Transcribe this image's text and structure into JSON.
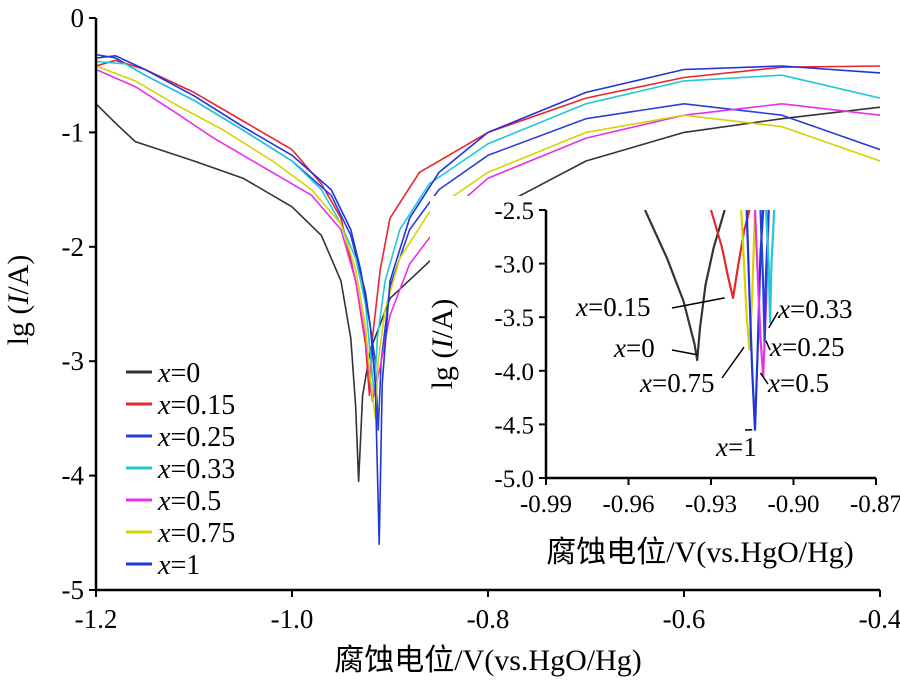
{
  "chart_data": [
    {
      "type": "line",
      "xlabel": "腐蚀电位/V(vs.HgO/Hg)",
      "ylabel": "lg (I/A)",
      "xlim": [
        -1.2,
        -0.4
      ],
      "ylim": [
        -5,
        0
      ],
      "x_ticks": [
        -1.2,
        -1.0,
        -0.8,
        -0.6,
        -0.4
      ],
      "x_tick_labels": [
        "-1.2",
        "-1.0",
        "-0.8",
        "-0.6",
        "-0.4"
      ],
      "y_ticks": [
        0,
        -1,
        -2,
        -3,
        -4,
        -5
      ],
      "y_tick_labels": [
        "0",
        "-1",
        "-2",
        "-3",
        "-4",
        "-5"
      ],
      "legend_position": "bottom-left",
      "series": [
        {
          "name": "x=0",
          "color": "#333333",
          "points": [
            [
              -1.2,
              -0.75
            ],
            [
              -1.18,
              -0.92
            ],
            [
              -1.16,
              -1.08
            ],
            [
              -1.1,
              -1.25
            ],
            [
              -1.05,
              -1.4
            ],
            [
              -1.0,
              -1.65
            ],
            [
              -0.97,
              -1.9
            ],
            [
              -0.95,
              -2.3
            ],
            [
              -0.94,
              -2.8
            ],
            [
              -0.935,
              -3.4
            ],
            [
              -0.932,
              -4.05
            ],
            [
              -0.928,
              -3.3
            ],
            [
              -0.92,
              -2.9
            ],
            [
              -0.9,
              -2.45
            ],
            [
              -0.85,
              -2.05
            ],
            [
              -0.8,
              -1.7
            ],
            [
              -0.7,
              -1.25
            ],
            [
              -0.6,
              -1.0
            ],
            [
              -0.5,
              -0.88
            ],
            [
              -0.4,
              -0.78
            ]
          ]
        },
        {
          "name": "x=0.15",
          "color": "#e8262b",
          "points": [
            [
              -1.2,
              -0.42
            ],
            [
              -1.18,
              -0.37
            ],
            [
              -1.15,
              -0.45
            ],
            [
              -1.1,
              -0.65
            ],
            [
              -1.05,
              -0.9
            ],
            [
              -1.0,
              -1.15
            ],
            [
              -0.97,
              -1.45
            ],
            [
              -0.95,
              -1.75
            ],
            [
              -0.935,
              -2.3
            ],
            [
              -0.925,
              -2.85
            ],
            [
              -0.921,
              -3.3
            ],
            [
              -0.918,
              -2.8
            ],
            [
              -0.91,
              -2.2
            ],
            [
              -0.9,
              -1.75
            ],
            [
              -0.87,
              -1.35
            ],
            [
              -0.8,
              -1.0
            ],
            [
              -0.7,
              -0.7
            ],
            [
              -0.6,
              -0.52
            ],
            [
              -0.5,
              -0.43
            ],
            [
              -0.4,
              -0.42
            ]
          ]
        },
        {
          "name": "x=0.25",
          "color": "#2b3fd6",
          "points": [
            [
              -1.2,
              -0.32
            ],
            [
              -1.18,
              -0.35
            ],
            [
              -1.15,
              -0.5
            ],
            [
              -1.1,
              -0.72
            ],
            [
              -1.05,
              -0.98
            ],
            [
              -1.0,
              -1.25
            ],
            [
              -0.96,
              -1.55
            ],
            [
              -0.94,
              -1.9
            ],
            [
              -0.925,
              -2.4
            ],
            [
              -0.915,
              -3.0
            ],
            [
              -0.912,
              -3.6
            ],
            [
              -0.909,
              -3.0
            ],
            [
              -0.9,
              -2.35
            ],
            [
              -0.88,
              -1.85
            ],
            [
              -0.85,
              -1.5
            ],
            [
              -0.8,
              -1.2
            ],
            [
              -0.7,
              -0.88
            ],
            [
              -0.6,
              -0.75
            ],
            [
              -0.5,
              -0.85
            ],
            [
              -0.4,
              -1.15
            ]
          ]
        },
        {
          "name": "x=0.33",
          "color": "#22c8d8",
          "points": [
            [
              -1.2,
              -0.38
            ],
            [
              -1.17,
              -0.4
            ],
            [
              -1.15,
              -0.5
            ],
            [
              -1.1,
              -0.72
            ],
            [
              -1.05,
              -0.98
            ],
            [
              -1.0,
              -1.25
            ],
            [
              -0.97,
              -1.5
            ],
            [
              -0.95,
              -1.8
            ],
            [
              -0.935,
              -2.1
            ],
            [
              -0.925,
              -2.5
            ],
            [
              -0.916,
              -3.3
            ],
            [
              -0.913,
              -2.8
            ],
            [
              -0.905,
              -2.3
            ],
            [
              -0.89,
              -1.85
            ],
            [
              -0.86,
              -1.45
            ],
            [
              -0.8,
              -1.1
            ],
            [
              -0.7,
              -0.75
            ],
            [
              -0.6,
              -0.55
            ],
            [
              -0.5,
              -0.5
            ],
            [
              -0.4,
              -0.7
            ]
          ]
        },
        {
          "name": "x=0.5",
          "color": "#e830e8",
          "points": [
            [
              -1.2,
              -0.45
            ],
            [
              -1.16,
              -0.6
            ],
            [
              -1.12,
              -0.82
            ],
            [
              -1.08,
              -1.05
            ],
            [
              -1.03,
              -1.3
            ],
            [
              -0.98,
              -1.55
            ],
            [
              -0.95,
              -1.85
            ],
            [
              -0.935,
              -2.3
            ],
            [
              -0.925,
              -2.8
            ],
            [
              -0.918,
              -3.35
            ],
            [
              -0.91,
              -3.05
            ],
            [
              -0.9,
              -2.6
            ],
            [
              -0.88,
              -2.15
            ],
            [
              -0.84,
              -1.7
            ],
            [
              -0.8,
              -1.4
            ],
            [
              -0.7,
              -1.05
            ],
            [
              -0.6,
              -0.85
            ],
            [
              -0.5,
              -0.75
            ],
            [
              -0.4,
              -0.85
            ]
          ]
        },
        {
          "name": "x=0.75",
          "color": "#d4d400",
          "points": [
            [
              -1.2,
              -0.42
            ],
            [
              -1.16,
              -0.55
            ],
            [
              -1.12,
              -0.75
            ],
            [
              -1.07,
              -0.98
            ],
            [
              -1.02,
              -1.25
            ],
            [
              -0.98,
              -1.5
            ],
            [
              -0.95,
              -1.8
            ],
            [
              -0.935,
              -2.2
            ],
            [
              -0.925,
              -2.7
            ],
            [
              -0.92,
              -3.15
            ],
            [
              -0.915,
              -3.5
            ],
            [
              -0.912,
              -3.0
            ],
            [
              -0.905,
              -2.55
            ],
            [
              -0.89,
              -2.1
            ],
            [
              -0.86,
              -1.7
            ],
            [
              -0.8,
              -1.35
            ],
            [
              -0.7,
              -1.0
            ],
            [
              -0.6,
              -0.85
            ],
            [
              -0.5,
              -0.95
            ],
            [
              -0.4,
              -1.25
            ]
          ]
        },
        {
          "name": "x=1",
          "color": "#1f35d8",
          "points": [
            [
              -1.2,
              -0.35
            ],
            [
              -1.18,
              -0.33
            ],
            [
              -1.15,
              -0.45
            ],
            [
              -1.1,
              -0.68
            ],
            [
              -1.05,
              -0.95
            ],
            [
              -1.0,
              -1.2
            ],
            [
              -0.96,
              -1.5
            ],
            [
              -0.94,
              -1.85
            ],
            [
              -0.93,
              -2.2
            ],
            [
              -0.92,
              -2.7
            ],
            [
              -0.915,
              -3.2
            ],
            [
              -0.911,
              -4.6
            ],
            [
              -0.908,
              -3.2
            ],
            [
              -0.9,
              -2.3
            ],
            [
              -0.88,
              -1.75
            ],
            [
              -0.85,
              -1.35
            ],
            [
              -0.8,
              -1.0
            ],
            [
              -0.7,
              -0.65
            ],
            [
              -0.6,
              -0.45
            ],
            [
              -0.5,
              -0.42
            ],
            [
              -0.4,
              -0.48
            ]
          ]
        }
      ]
    },
    {
      "type": "line",
      "xlabel": "腐蚀电位/V(vs.HgO/Hg)",
      "ylabel": "lg (I/A)",
      "xlim": [
        -0.99,
        -0.87
      ],
      "ylim": [
        -5.0,
        -2.5
      ],
      "x_ticks": [
        -0.99,
        -0.96,
        -0.93,
        -0.9,
        -0.87
      ],
      "x_tick_labels": [
        "-0.99",
        "-0.96",
        "-0.93",
        "-0.90",
        "-0.87"
      ],
      "y_ticks": [
        -2.5,
        -3.0,
        -3.5,
        -4.0,
        -4.5,
        -5.0
      ],
      "y_tick_labels": [
        "-2.5",
        "-3.0",
        "-3.5",
        "-4.0",
        "-4.5",
        "-5.0"
      ],
      "annotations": [
        {
          "label": "x=0.15",
          "x": -0.925,
          "y": -3.32
        },
        {
          "label": "x=0",
          "x": -0.935,
          "y": -3.85
        },
        {
          "label": "x=0.75",
          "x": -0.918,
          "y": -3.78
        },
        {
          "label": "x=1",
          "x": -0.915,
          "y": -4.55
        },
        {
          "label": "x=0.33",
          "x": -0.909,
          "y": -3.6
        },
        {
          "label": "x=0.25",
          "x": -0.91,
          "y": -3.72
        },
        {
          "label": "x=0.5",
          "x": -0.912,
          "y": -4.02
        }
      ],
      "series": [
        {
          "name": "x=0",
          "color": "#333333",
          "points": [
            [
              -0.954,
              -2.5
            ],
            [
              -0.946,
              -2.95
            ],
            [
              -0.94,
              -3.35
            ],
            [
              -0.936,
              -3.75
            ],
            [
              -0.935,
              -3.9
            ],
            [
              -0.934,
              -3.6
            ],
            [
              -0.932,
              -3.2
            ],
            [
              -0.929,
              -2.85
            ],
            [
              -0.925,
              -2.5
            ]
          ]
        },
        {
          "name": "x=0.15",
          "color": "#e8262b",
          "points": [
            [
              -0.93,
              -2.5
            ],
            [
              -0.926,
              -2.85
            ],
            [
              -0.924,
              -3.1
            ],
            [
              -0.922,
              -3.32
            ],
            [
              -0.92,
              -3.0
            ],
            [
              -0.918,
              -2.7
            ],
            [
              -0.916,
              -2.5
            ]
          ]
        },
        {
          "name": "x=0.75",
          "color": "#d4d400",
          "points": [
            [
              -0.919,
              -2.5
            ],
            [
              -0.918,
              -3.0
            ],
            [
              -0.917,
              -3.5
            ],
            [
              -0.916,
              -3.8
            ],
            [
              -0.915,
              -3.3
            ],
            [
              -0.914,
              -2.5
            ]
          ]
        },
        {
          "name": "x=1",
          "color": "#1f35d8",
          "points": [
            [
              -0.917,
              -2.5
            ],
            [
              -0.916,
              -3.3
            ],
            [
              -0.915,
              -4.0
            ],
            [
              -0.914,
              -4.55
            ],
            [
              -0.913,
              -3.8
            ],
            [
              -0.912,
              -2.9
            ],
            [
              -0.911,
              -2.5
            ]
          ]
        },
        {
          "name": "x=0.5",
          "color": "#e830e8",
          "points": [
            [
              -0.914,
              -2.5
            ],
            [
              -0.913,
              -3.1
            ],
            [
              -0.912,
              -3.7
            ],
            [
              -0.911,
              -4.05
            ],
            [
              -0.91,
              -3.4
            ],
            [
              -0.909,
              -2.5
            ]
          ]
        },
        {
          "name": "x=0.25",
          "color": "#2b3fd6",
          "points": [
            [
              -0.912,
              -2.5
            ],
            [
              -0.911,
              -3.2
            ],
            [
              -0.9105,
              -3.72
            ],
            [
              -0.91,
              -3.1
            ],
            [
              -0.909,
              -2.5
            ]
          ]
        },
        {
          "name": "x=0.33",
          "color": "#22c8d8",
          "points": [
            [
              -0.91,
              -2.5
            ],
            [
              -0.909,
              -3.0
            ],
            [
              -0.9085,
              -3.55
            ],
            [
              -0.908,
              -3.0
            ],
            [
              -0.907,
              -2.5
            ]
          ]
        }
      ]
    }
  ]
}
